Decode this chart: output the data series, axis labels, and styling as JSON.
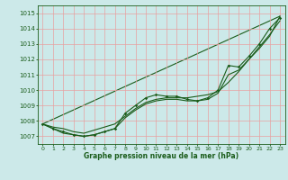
{
  "title": "Graphe pression niveau de la mer (hPa)",
  "bg_color": "#cce9e9",
  "grid_color": "#e8a0a0",
  "line_color": "#1a5c1a",
  "xlim": [
    -0.5,
    23.5
  ],
  "ylim": [
    1006.5,
    1015.5
  ],
  "yticks": [
    1007,
    1008,
    1009,
    1010,
    1011,
    1012,
    1013,
    1014,
    1015
  ],
  "xticks": [
    0,
    1,
    2,
    3,
    4,
    5,
    6,
    7,
    8,
    9,
    10,
    11,
    12,
    13,
    14,
    15,
    16,
    17,
    18,
    19,
    20,
    21,
    22,
    23
  ],
  "series_main": [
    1007.8,
    1007.5,
    1007.3,
    1007.1,
    1007.0,
    1007.1,
    1007.3,
    1007.5,
    1008.5,
    1009.0,
    1009.5,
    1009.7,
    1009.6,
    1009.6,
    1009.4,
    1009.3,
    1009.5,
    1010.0,
    1011.6,
    1011.5,
    1012.2,
    1013.0,
    1014.0,
    1014.7
  ],
  "series_smooth": [
    1007.8,
    1007.6,
    1007.5,
    1007.3,
    1007.2,
    1007.4,
    1007.6,
    1007.8,
    1008.3,
    1008.8,
    1009.2,
    1009.4,
    1009.5,
    1009.5,
    1009.5,
    1009.6,
    1009.7,
    1009.9,
    1010.5,
    1011.2,
    1012.0,
    1012.8,
    1013.6,
    1014.5
  ],
  "series_lower": [
    1007.8,
    1007.5,
    1007.2,
    1007.1,
    1007.0,
    1007.1,
    1007.3,
    1007.5,
    1008.2,
    1008.7,
    1009.1,
    1009.3,
    1009.4,
    1009.4,
    1009.3,
    1009.3,
    1009.4,
    1009.8,
    1011.0,
    1011.3,
    1012.0,
    1012.7,
    1013.5,
    1014.8
  ],
  "line_straight": [
    [
      0,
      23
    ],
    [
      1007.8,
      1014.8
    ]
  ],
  "x": [
    0,
    1,
    2,
    3,
    4,
    5,
    6,
    7,
    8,
    9,
    10,
    11,
    12,
    13,
    14,
    15,
    16,
    17,
    18,
    19,
    20,
    21,
    22,
    23
  ]
}
